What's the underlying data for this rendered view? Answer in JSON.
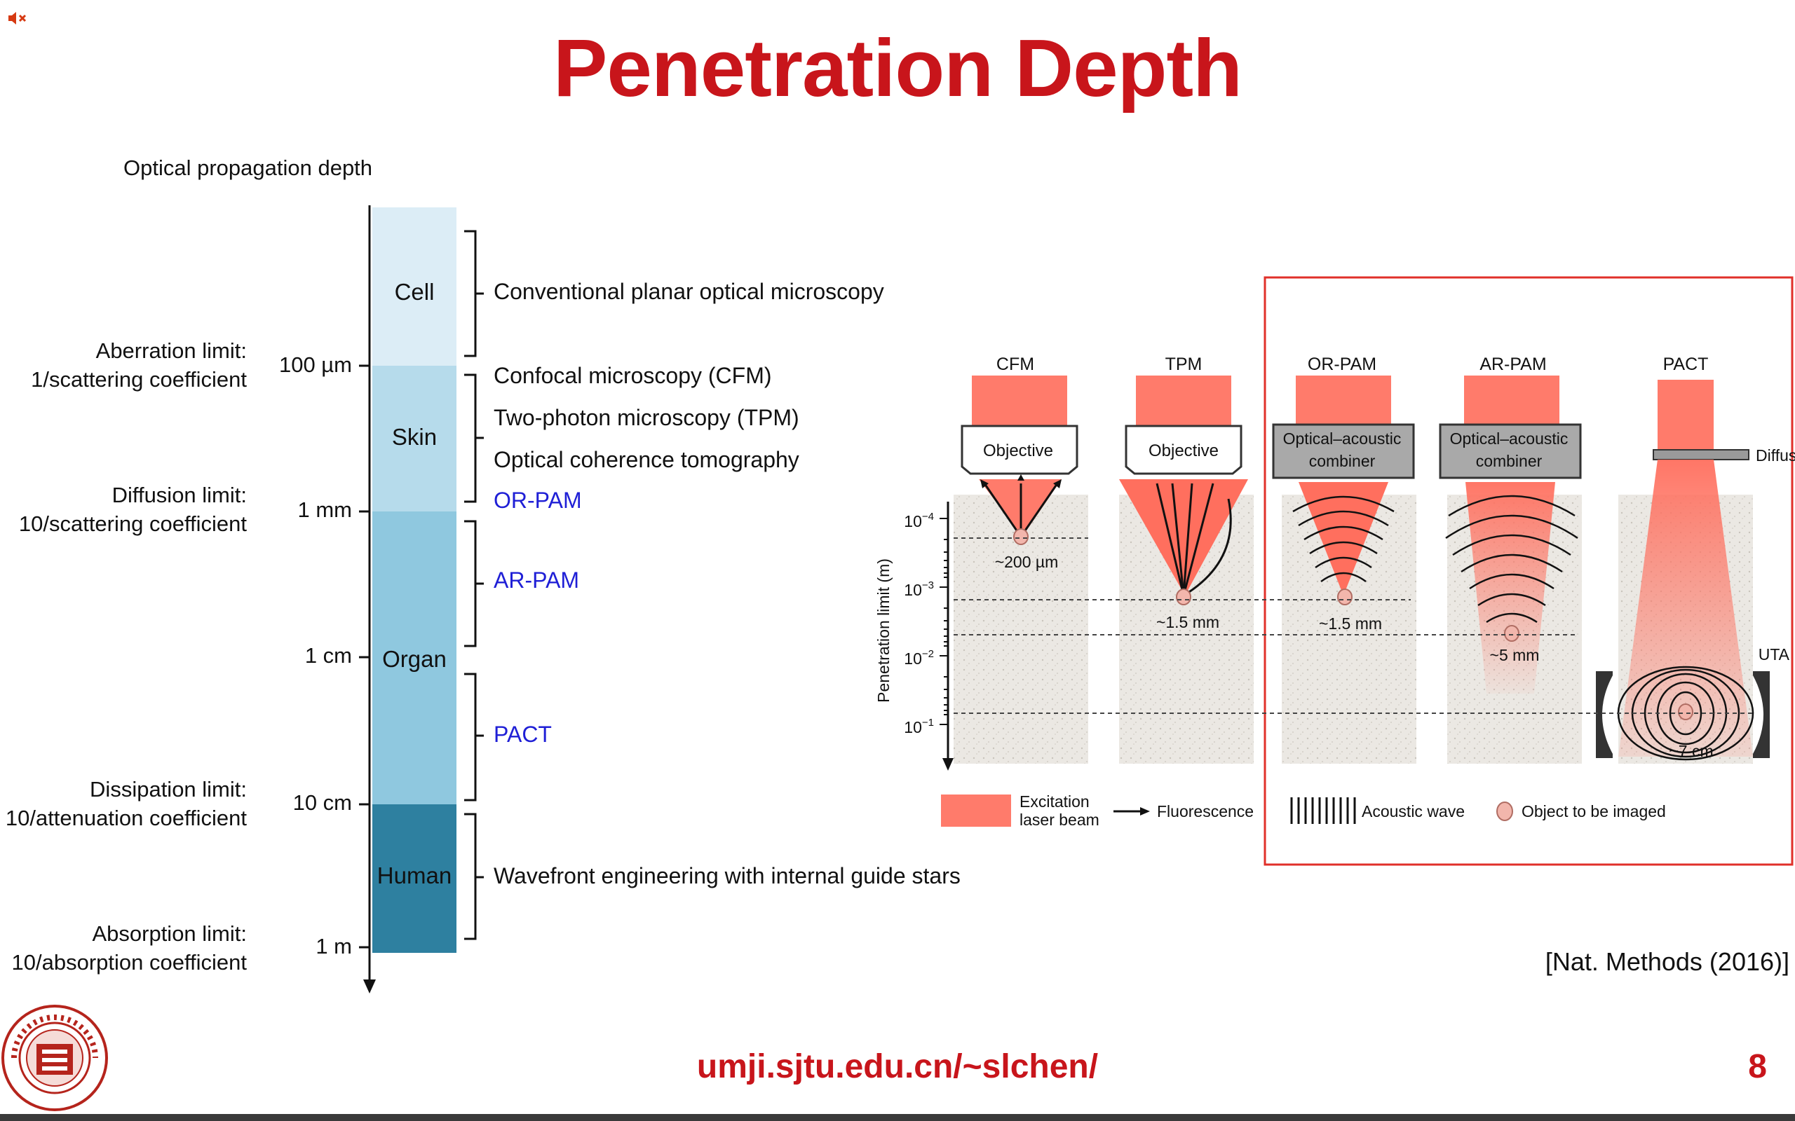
{
  "slide": {
    "title": "Penetration Depth",
    "footer_url": "umji.sjtu.edu.cn/~slchen/",
    "page_number": "8",
    "citation": "[Nat. Methods (2016)]",
    "mute_icon": "speaker-muted-icon",
    "logo_icon": "sjtu-university-seal-icon",
    "accent_color": "#c8151b"
  },
  "left_diagram": {
    "heading": "Optical propagation depth",
    "limits": [
      {
        "line1": "Aberration limit:",
        "line2": "1/scattering coefficient"
      },
      {
        "line1": "Diffusion limit:",
        "line2": "10/scattering coefficient"
      },
      {
        "line1": "Dissipation limit:",
        "line2": "10/attenuation coefficient"
      },
      {
        "line1": "Absorption limit:",
        "line2": "10/absorption coefficient"
      }
    ],
    "ticks": [
      "100 µm",
      "1 mm",
      "1 cm",
      "10 cm",
      "1 m"
    ],
    "segments": [
      {
        "label": "Cell",
        "color": "#dcedf6"
      },
      {
        "label": "Skin",
        "color": "#b6dbeb"
      },
      {
        "label": "Organ",
        "color": "#8fc8df"
      },
      {
        "label": "Human",
        "color": "#2e80a0"
      }
    ],
    "techniques": [
      {
        "text": "Conventional planar optical microscopy",
        "color": "black"
      },
      {
        "text": "Confocal microscopy (CFM)",
        "color": "black"
      },
      {
        "text": "Two-photon microscopy (TPM)",
        "color": "black"
      },
      {
        "text": "Optical coherence tomography",
        "color": "black"
      },
      {
        "text": "OR-PAM",
        "color": "blue"
      },
      {
        "text": "AR-PAM",
        "color": "blue"
      },
      {
        "text": "PACT",
        "color": "blue"
      },
      {
        "text": "Wavefront engineering with internal guide stars",
        "color": "black"
      }
    ]
  },
  "right_diagram": {
    "columns": [
      {
        "name": "CFM",
        "head": "Objective",
        "depth": "~200 µm"
      },
      {
        "name": "TPM",
        "head": "Objective",
        "depth": "~1.5 mm"
      },
      {
        "name": "OR-PAM",
        "head": "Optical–acoustic combiner",
        "head_line1": "Optical–acoustic",
        "head_line2": "combiner",
        "depth": "~1.5 mm"
      },
      {
        "name": "AR-PAM",
        "head": "Optical–acoustic combiner",
        "head_line1": "Optical–acoustic",
        "head_line2": "combiner",
        "depth": "~5 mm"
      },
      {
        "name": "PACT",
        "head": "Diffuser",
        "depth": "~7 cm"
      }
    ],
    "uta_label": "UTA",
    "y_axis_label": "Penetration limit (m)",
    "y_ticks": [
      {
        "base": "10",
        "exp": "−4"
      },
      {
        "base": "10",
        "exp": "−3"
      },
      {
        "base": "10",
        "exp": "−2"
      },
      {
        "base": "10",
        "exp": "−1"
      }
    ],
    "legend": {
      "excitation_line1": "Excitation",
      "excitation_line2": "laser beam",
      "fluorescence": "Fluorescence",
      "acoustic_wave": "Acoustic wave",
      "object": "Object to be imaged"
    },
    "highlight_color": "#e0302a",
    "laser_color": "#ff7b6b"
  }
}
